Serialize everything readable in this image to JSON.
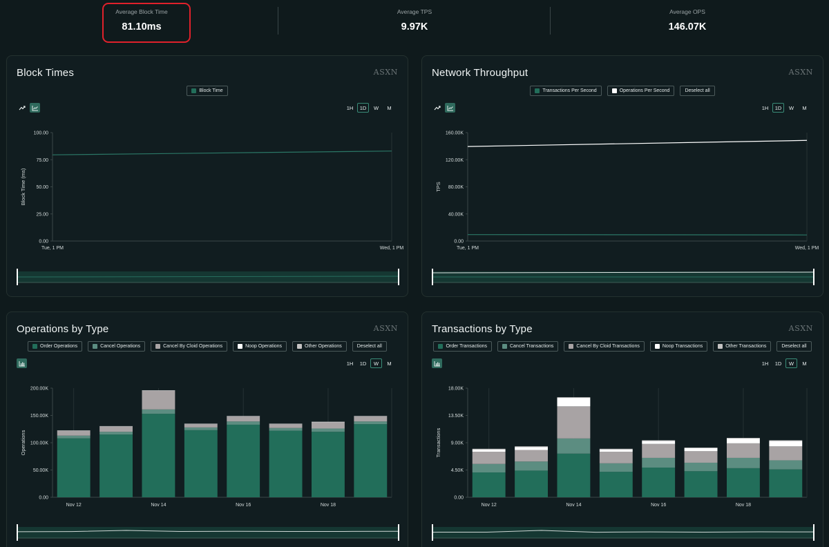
{
  "stats": [
    {
      "label": "Average Block Time",
      "value": "81.10ms"
    },
    {
      "label": "Average TPS",
      "value": "9.97K"
    },
    {
      "label": "Average OPS",
      "value": "146.07K"
    }
  ],
  "watermark": "ASXN",
  "timeframes": [
    "1H",
    "1D",
    "W",
    "M"
  ],
  "colors": {
    "order": "#226e5a",
    "cancel": "#5c8d81",
    "cloid": "#a8a3a4",
    "noop": "#f4f4f4",
    "other": "#c4c2c2",
    "accent": "#2b7766"
  },
  "panels": {
    "block_times": {
      "title": "Block Times",
      "legend": [
        {
          "label": "Block Time",
          "color": "#226e5a"
        }
      ],
      "active_timeframe": "1D"
    },
    "throughput": {
      "title": "Network Throughput",
      "legend": [
        {
          "label": "Transactions Per Second",
          "color": "#226e5a"
        },
        {
          "label": "Operations Per Second",
          "color": "#ffffff"
        }
      ],
      "deselect": "Deselect all",
      "active_timeframe": "1D"
    },
    "ops_by_type": {
      "title": "Operations by Type",
      "legend": [
        {
          "label": "Order Operations",
          "color": "#226e5a"
        },
        {
          "label": "Cancel Operations",
          "color": "#5c8d81"
        },
        {
          "label": "Cancel By Cloid Operations",
          "color": "#a8a3a4"
        },
        {
          "label": "Noop Operations",
          "color": "#ffffff"
        },
        {
          "label": "Other Operations",
          "color": "#c4c2c2"
        }
      ],
      "deselect": "Deselect all",
      "active_timeframe": "W"
    },
    "tx_by_type": {
      "title": "Transactions by Type",
      "legend": [
        {
          "label": "Order Transactions",
          "color": "#226e5a"
        },
        {
          "label": "Cancel Transactions",
          "color": "#5c8d81"
        },
        {
          "label": "Cancel By Cloid Transactions",
          "color": "#a8a3a4"
        },
        {
          "label": "Noop Transactions",
          "color": "#ffffff"
        },
        {
          "label": "Other Transactions",
          "color": "#c4c2c2"
        }
      ],
      "deselect": "Deselect all",
      "active_timeframe": "W"
    }
  },
  "chart_data": [
    {
      "id": "block_times",
      "type": "line",
      "ylabel": "Block Time (ms)",
      "ylim": [
        0,
        100
      ],
      "yticks": [
        0,
        25,
        50,
        75,
        100
      ],
      "ytick_labels": [
        "0.00",
        "25.00",
        "50.00",
        "75.00",
        "100.00"
      ],
      "x_labels": [
        "Tue, 1 PM",
        "Wed, 1 PM"
      ],
      "series": [
        {
          "name": "Block Time",
          "color": "#2b7766",
          "values": [
            79.5,
            83
          ]
        }
      ]
    },
    {
      "id": "throughput",
      "type": "line",
      "ylabel": "TPS",
      "ylim": [
        0,
        160000
      ],
      "yticks": [
        0,
        40000,
        80000,
        120000,
        160000
      ],
      "ytick_labels": [
        "0.00",
        "40.00K",
        "80.00K",
        "120.00K",
        "160.00K"
      ],
      "x_labels": [
        "Tue, 1 PM",
        "Wed, 1 PM"
      ],
      "series": [
        {
          "name": "Operations Per Second",
          "color": "#ffffff",
          "values": [
            139500,
            148500
          ]
        },
        {
          "name": "Transactions Per Second",
          "color": "#2b7766",
          "values": [
            9500,
            9000
          ]
        }
      ]
    },
    {
      "id": "ops_by_type",
      "type": "bar",
      "stacked": true,
      "ylabel": "Operations",
      "ylim": [
        0,
        200000
      ],
      "yticks": [
        0,
        50000,
        100000,
        150000,
        200000
      ],
      "ytick_labels": [
        "0.00",
        "50.00K",
        "100.00K",
        "150.00K",
        "200.00K"
      ],
      "categories": [
        "Nov 12",
        "Nov 13",
        "Nov 14",
        "Nov 15",
        "Nov 16",
        "Nov 17",
        "Nov 18",
        "Nov 19"
      ],
      "x_labels": [
        "Nov 12",
        "",
        "Nov 14",
        "",
        "Nov 16",
        "",
        "Nov 18",
        ""
      ],
      "series": [
        {
          "name": "Order Operations",
          "color": "#226e5a",
          "values": [
            108000,
            115000,
            153000,
            123000,
            133000,
            122000,
            120000,
            134000
          ]
        },
        {
          "name": "Cancel Operations",
          "color": "#5c8d81",
          "values": [
            5000,
            5000,
            8000,
            5000,
            6000,
            5000,
            6000,
            5000
          ]
        },
        {
          "name": "Cancel By Cloid Operations",
          "color": "#a8a3a4",
          "values": [
            8500,
            9500,
            34000,
            6000,
            9000,
            7000,
            11500,
            9000
          ]
        },
        {
          "name": "Noop Operations",
          "color": "#ffffff",
          "values": [
            500,
            500,
            500,
            500,
            500,
            500,
            500,
            500
          ]
        },
        {
          "name": "Other Operations",
          "color": "#c4c2c2",
          "values": [
            500,
            500,
            500,
            500,
            500,
            500,
            500,
            500
          ]
        }
      ]
    },
    {
      "id": "tx_by_type",
      "type": "bar",
      "stacked": true,
      "ylabel": "Transactions",
      "ylim": [
        0,
        18000
      ],
      "yticks": [
        0,
        4500,
        9000,
        13500,
        18000
      ],
      "ytick_labels": [
        "0.00",
        "4.50K",
        "9.00K",
        "13.50K",
        "18.00K"
      ],
      "categories": [
        "Nov 12",
        "Nov 13",
        "Nov 14",
        "Nov 15",
        "Nov 16",
        "Nov 17",
        "Nov 18",
        "Nov 19"
      ],
      "x_labels": [
        "Nov 12",
        "",
        "Nov 14",
        "",
        "Nov 16",
        "",
        "Nov 18",
        ""
      ],
      "series": [
        {
          "name": "Order Transactions",
          "color": "#226e5a",
          "values": [
            4100,
            4400,
            7200,
            4200,
            4900,
            4300,
            4800,
            4600
          ]
        },
        {
          "name": "Cancel Transactions",
          "color": "#5c8d81",
          "values": [
            1400,
            1500,
            2500,
            1400,
            1600,
            1400,
            1700,
            1500
          ]
        },
        {
          "name": "Cancel By Cloid Transactions",
          "color": "#a8a3a4",
          "values": [
            2000,
            1900,
            5300,
            1900,
            2300,
            1900,
            2400,
            2300
          ]
        },
        {
          "name": "Noop Transactions",
          "color": "#ffffff",
          "values": [
            400,
            500,
            1400,
            400,
            500,
            500,
            800,
            900
          ]
        },
        {
          "name": "Other Transactions",
          "color": "#c4c2c2",
          "values": [
            100,
            100,
            100,
            100,
            100,
            100,
            100,
            100
          ]
        }
      ]
    }
  ]
}
